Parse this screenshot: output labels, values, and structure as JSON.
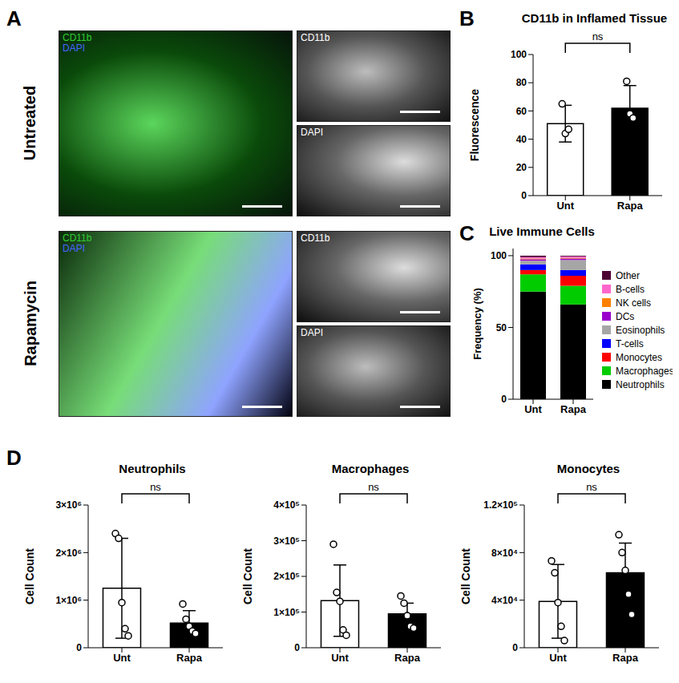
{
  "image_panel": {
    "panel_label": "A",
    "conditions": [
      "Untreated",
      "Rapamycin"
    ],
    "merged_channels": [
      {
        "name": "CD11b",
        "color": "#33cc33"
      },
      {
        "name": "DAPI",
        "color": "#4466ff"
      }
    ],
    "single_channels": [
      "CD11b",
      "DAPI"
    ]
  },
  "chart_data": [
    {
      "panel_label": "B",
      "type": "bar",
      "title": "CD11b in Inflamed Tissue",
      "y_label": "Fluorescence",
      "categories": [
        "Unt",
        "Rapa"
      ],
      "values": [
        51,
        62
      ],
      "error": [
        13,
        16
      ],
      "points": [
        [
          65,
          44,
          47
        ],
        [
          81,
          58,
          55
        ]
      ],
      "colors": [
        "#ffffff",
        "#000000"
      ],
      "significance": "ns",
      "ylim": [
        0,
        100
      ],
      "yticks": [
        0,
        20,
        40,
        60,
        80,
        100
      ]
    },
    {
      "panel_label": "C",
      "type": "bar",
      "stacked": true,
      "title": "Live Immune Cells",
      "y_label": "Frequency (%)",
      "categories": [
        "Unt",
        "Rapa"
      ],
      "series": [
        {
          "name": "Neutrophils",
          "color": "#000000",
          "values": [
            75,
            66
          ]
        },
        {
          "name": "Macrophages",
          "color": "#00cc00",
          "values": [
            12,
            13
          ]
        },
        {
          "name": "Monocytes",
          "color": "#ff0000",
          "values": [
            3,
            7
          ]
        },
        {
          "name": "T-cells",
          "color": "#0000ff",
          "values": [
            4,
            4
          ]
        },
        {
          "name": "Eosinophils",
          "color": "#a6a6a6",
          "values": [
            2.5,
            7
          ]
        },
        {
          "name": "DCs",
          "color": "#9900cc",
          "values": [
            1,
            1
          ]
        },
        {
          "name": "NK cells",
          "color": "#ff8000",
          "values": [
            0.5,
            0.5
          ]
        },
        {
          "name": "B-cells",
          "color": "#ff66cc",
          "values": [
            1,
            1
          ]
        },
        {
          "name": "Other",
          "color": "#4d0033",
          "values": [
            1,
            0.5
          ]
        }
      ],
      "legend": "right",
      "ylim": [
        0,
        105
      ],
      "yticks": [
        0,
        50,
        100
      ]
    },
    {
      "panel_label": "D",
      "type": "bar",
      "title": "Neutrophils",
      "y_label": "Cell Count",
      "categories": [
        "Unt",
        "Rapa"
      ],
      "values": [
        1250000,
        520000
      ],
      "error": [
        1050000,
        260000
      ],
      "points": [
        [
          2400000,
          2300000,
          950000,
          400000,
          250000
        ],
        [
          920000,
          600000,
          450000,
          350000,
          300000
        ]
      ],
      "colors": [
        "#ffffff",
        "#000000"
      ],
      "significance": "ns",
      "ylim": [
        0,
        3000000
      ],
      "yticks": [
        0,
        {
          "value": 1000000,
          "label": "1×10⁶"
        },
        {
          "value": 2000000,
          "label": "2×10⁶"
        },
        {
          "value": 3000000,
          "label": "3×10⁶"
        }
      ]
    },
    {
      "type": "bar",
      "title": "Macrophages",
      "y_label": "Cell Count",
      "categories": [
        "Unt",
        "Rapa"
      ],
      "values": [
        132000,
        95000
      ],
      "error": [
        100000,
        30000
      ],
      "points": [
        [
          290000,
          155000,
          130000,
          50000,
          35000
        ],
        [
          145000,
          125000,
          90000,
          60000,
          55000
        ]
      ],
      "colors": [
        "#ffffff",
        "#000000"
      ],
      "significance": "ns",
      "ylim": [
        0,
        400000
      ],
      "yticks": [
        0,
        {
          "value": 100000,
          "label": "1×10⁵"
        },
        {
          "value": 200000,
          "label": "2×10⁵"
        },
        {
          "value": 300000,
          "label": "3×10⁵"
        },
        {
          "value": 400000,
          "label": "4×10⁵"
        }
      ]
    },
    {
      "type": "bar",
      "title": "Monocytes",
      "y_label": "Cell Count",
      "categories": [
        "Unt",
        "Rapa"
      ],
      "values": [
        39000,
        63000
      ],
      "error": [
        31000,
        25000
      ],
      "points": [
        [
          73000,
          63000,
          38000,
          18000,
          6000
        ],
        [
          95000,
          80000,
          65000,
          45000,
          28000
        ]
      ],
      "colors": [
        "#ffffff",
        "#000000"
      ],
      "significance": "ns",
      "ylim": [
        0,
        120000
      ],
      "yticks": [
        0,
        {
          "value": 40000,
          "label": "4×10⁴"
        },
        {
          "value": 80000,
          "label": "8×10⁴"
        },
        {
          "value": 120000,
          "label": "1.2×10⁵"
        }
      ]
    }
  ]
}
